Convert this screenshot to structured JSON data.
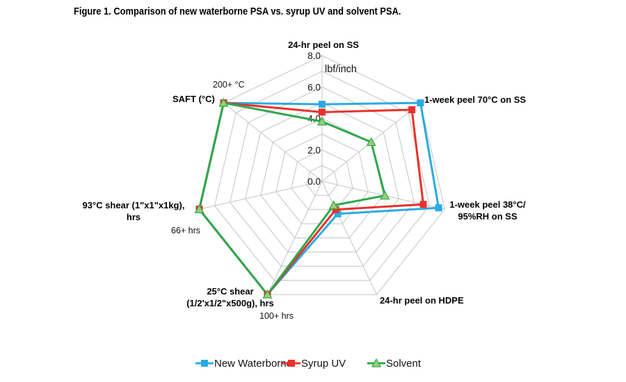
{
  "figure_title": "Figure 1. Comparison of new waterborne PSA vs. syrup UV and solvent PSA.",
  "chart_data": {
    "type": "radar",
    "title": "Figure 1. Comparison of new waterborne PSA vs. syrup UV and solvent PSA.",
    "unit_label": "lbf/inch",
    "rlim": [
      0,
      8
    ],
    "ticks": [
      {
        "value": 0,
        "label": "0.0"
      },
      {
        "value": 2,
        "label": "2.0"
      },
      {
        "value": 4,
        "label": "4.0"
      },
      {
        "value": 6,
        "label": "6.0"
      },
      {
        "value": 8,
        "label": "8.0"
      }
    ],
    "axes": [
      {
        "lines": [
          "24-hr peel on SS"
        ]
      },
      {
        "lines": [
          "1-week peel 70°C on SS"
        ]
      },
      {
        "lines": [
          "1-week peel 38°C/",
          "95%RH on SS"
        ]
      },
      {
        "lines": [
          "24-hr peel on HDPE"
        ]
      },
      {
        "lines": [
          "25°C shear",
          "(1/2'x1/2\"x500g), hrs"
        ]
      },
      {
        "lines": [
          "93°C shear (1\"x1\"x1kg),",
          "hrs"
        ]
      },
      {
        "lines": [
          "SAFT (°C)"
        ]
      }
    ],
    "axis_notes": [
      {
        "axis": 6,
        "text": "200+ °C"
      },
      {
        "axis": 5,
        "text": "66+ hrs"
      },
      {
        "axis": 4,
        "text": "100+ hrs"
      }
    ],
    "series": [
      {
        "name": "New Waterborne",
        "color": "#29ABE2",
        "marker": "square",
        "values": [
          4.9,
          8.0,
          7.6,
          2.3,
          8.0,
          8.0,
          8.0
        ]
      },
      {
        "name": "Syrup UV",
        "color": "#E8312A",
        "marker": "square",
        "values": [
          4.4,
          7.3,
          6.6,
          2.0,
          8.0,
          8.0,
          8.0
        ]
      },
      {
        "name": "Solvent",
        "color": "#2DA84A",
        "marker": "triangle",
        "values": [
          3.8,
          4.0,
          4.1,
          1.7,
          8.0,
          8.0,
          8.0
        ]
      }
    ]
  }
}
